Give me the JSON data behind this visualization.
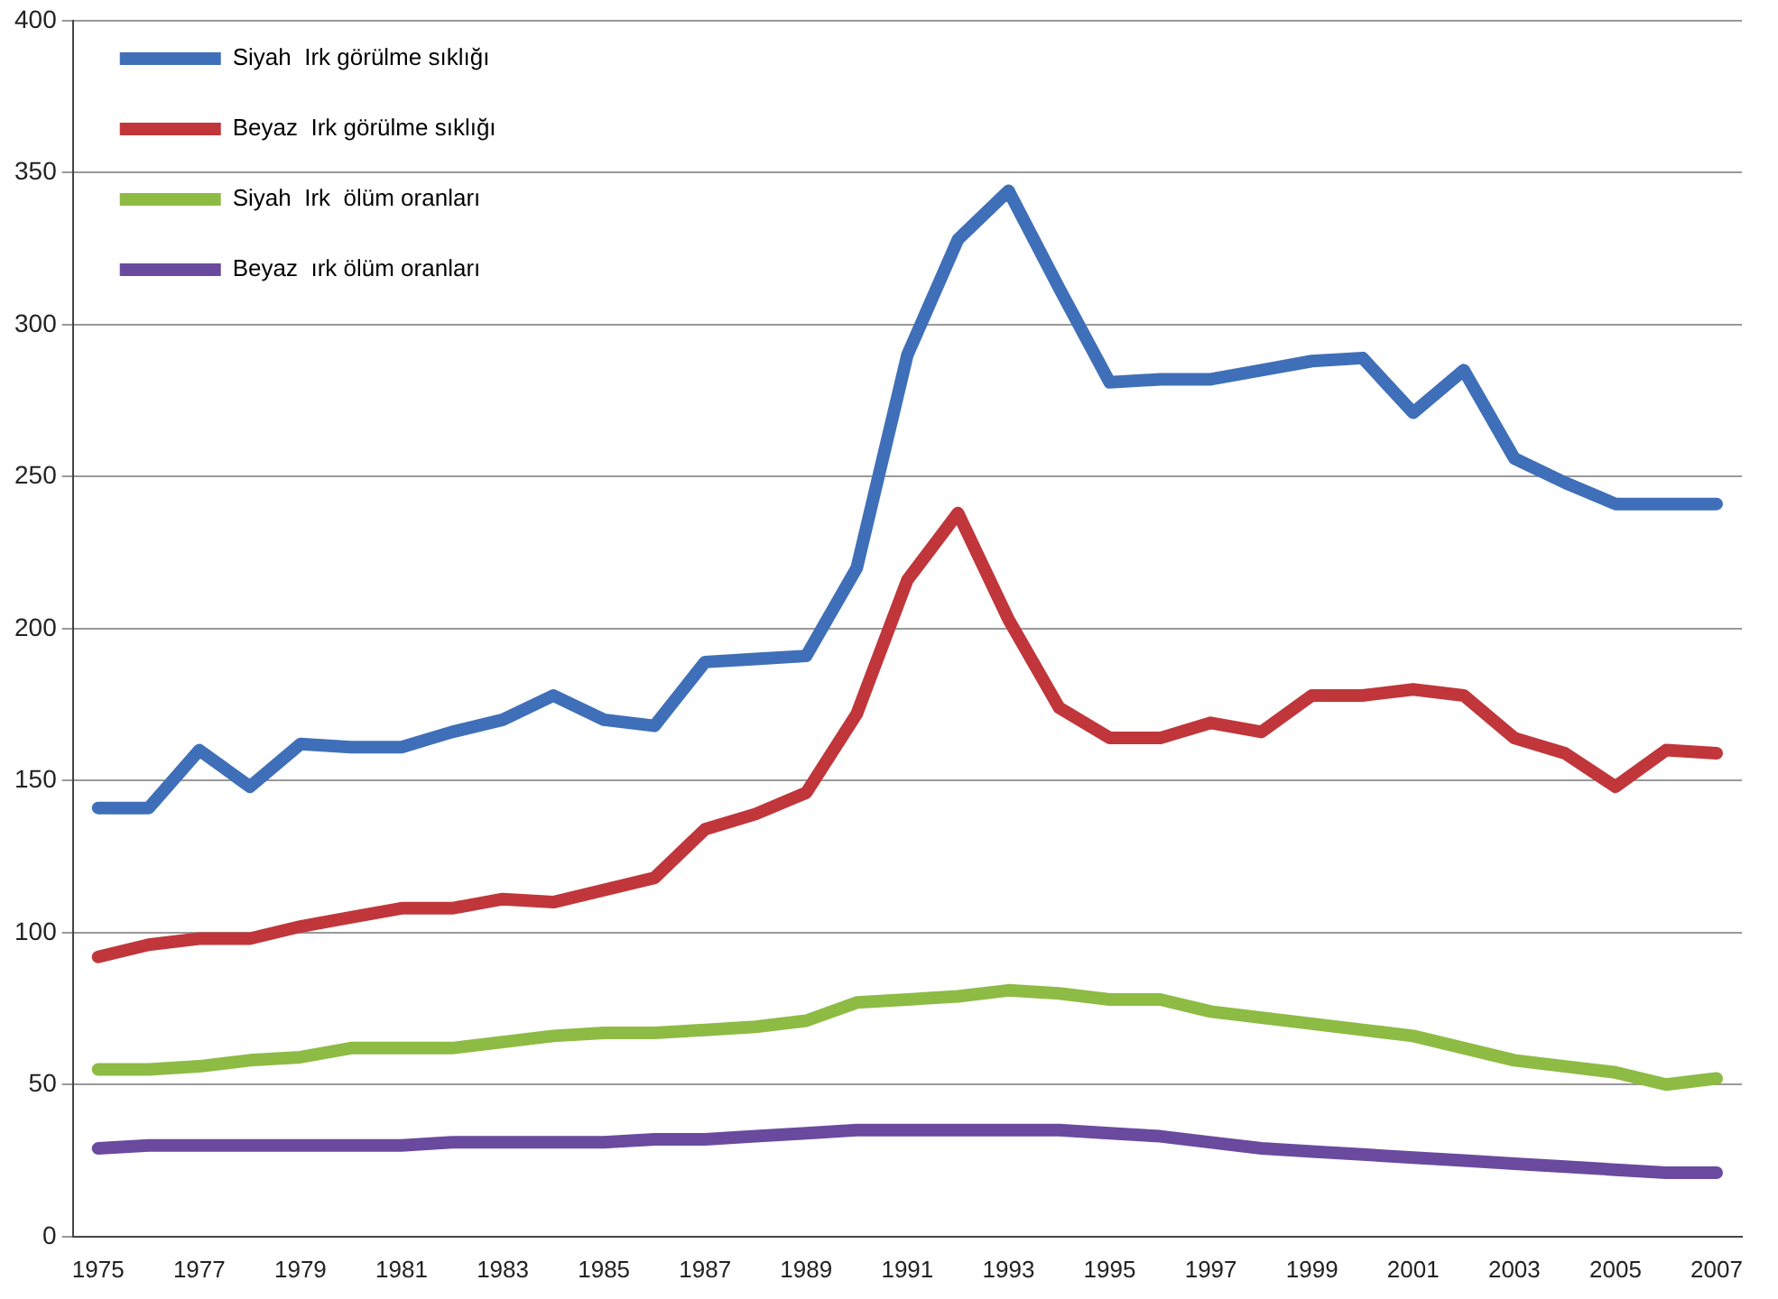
{
  "chart_data": {
    "type": "line",
    "categories": [
      "1975",
      null,
      "1977",
      null,
      "1979",
      null,
      "1981",
      null,
      "1983",
      null,
      "1985",
      null,
      "1987",
      null,
      "1989",
      null,
      "1991",
      null,
      "1993",
      null,
      "1995",
      null,
      "1997",
      null,
      "1999",
      null,
      "2001",
      null,
      "2003",
      null,
      "2005",
      null,
      "2007"
    ],
    "series": [
      {
        "name": "Siyah  Irk görülme sıklığı",
        "color": "#3f6fb8",
        "values": [
          141,
          141,
          160,
          148,
          162,
          161,
          161,
          166,
          170,
          178,
          170,
          168,
          189,
          190,
          191,
          220,
          290,
          328,
          344,
          312,
          281,
          282,
          282,
          285,
          288,
          289,
          271,
          285,
          256,
          248,
          241,
          241,
          241
        ]
      },
      {
        "name": "Beyaz  Irk görülme sıklığı",
        "color": "#c0363a",
        "values": [
          92,
          96,
          98,
          98,
          102,
          105,
          108,
          108,
          111,
          110,
          114,
          118,
          134,
          139,
          146,
          172,
          216,
          238,
          203,
          174,
          164,
          164,
          169,
          166,
          178,
          178,
          180,
          178,
          164,
          159,
          148,
          160,
          159
        ]
      },
      {
        "name": "Siyah  Irk  ölüm oranları",
        "color": "#8dbb44",
        "values": [
          55,
          55,
          56,
          58,
          59,
          62,
          62,
          62,
          64,
          66,
          67,
          67,
          68,
          69,
          71,
          77,
          78,
          79,
          81,
          80,
          78,
          78,
          74,
          72,
          70,
          68,
          66,
          62,
          58,
          56,
          54,
          50,
          52
        ]
      },
      {
        "name": "Beyaz  ırk ölüm oranları",
        "color": "#6a4a9e",
        "values": [
          29,
          30,
          30,
          30,
          30,
          30,
          30,
          31,
          31,
          31,
          31,
          32,
          32,
          33,
          34,
          35,
          35,
          35,
          35,
          35,
          34,
          33,
          31,
          29,
          28,
          27,
          26,
          25,
          24,
          23,
          22,
          21,
          21
        ]
      }
    ],
    "ylim": [
      0,
      400
    ],
    "yticks": [
      0,
      50,
      100,
      150,
      200,
      250,
      300,
      350,
      400
    ],
    "grid": "y",
    "legend": "top left",
    "marker": "none",
    "line_style": "solid"
  }
}
